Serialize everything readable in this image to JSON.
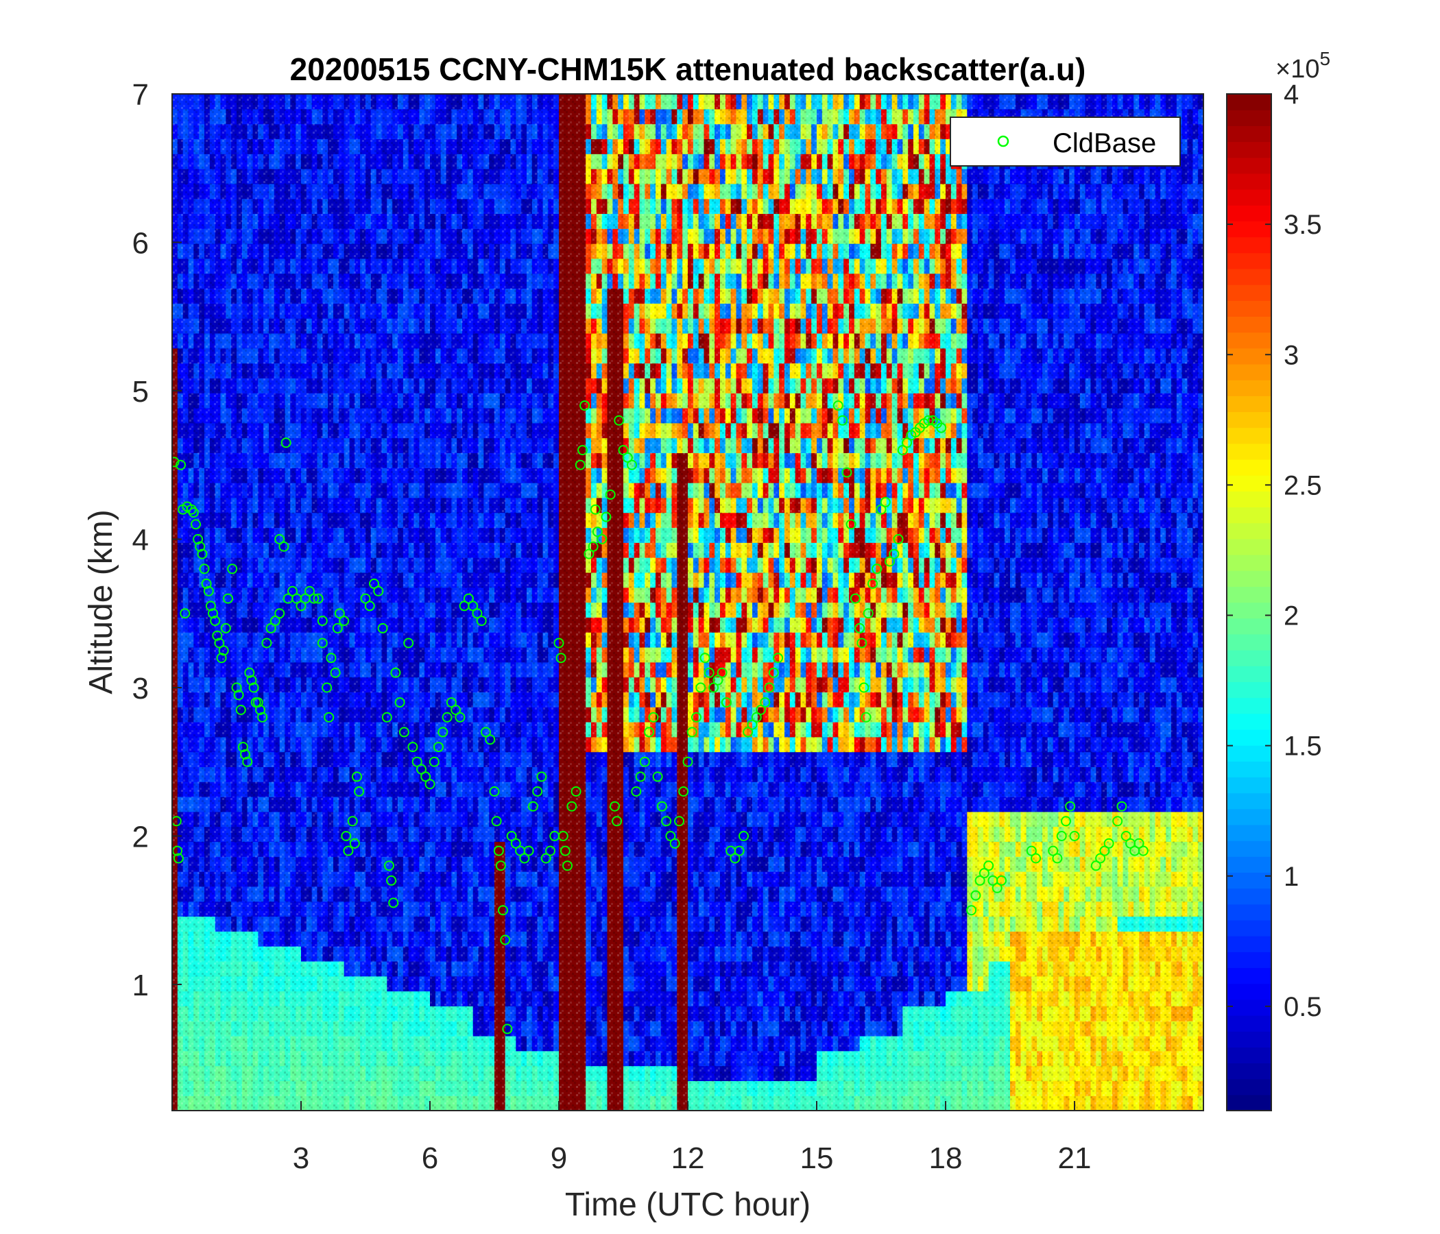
{
  "chart_data": {
    "type": "heatmap",
    "title": "20200515 CCNY-CHM15K attenuated backscatter(a.u)",
    "xlabel": "Time (UTC hour)",
    "ylabel": "Altitude (km)",
    "xlim": [
      0,
      24
    ],
    "ylim": [
      0.15,
      7
    ],
    "x_ticks": [
      3,
      6,
      9,
      12,
      15,
      18,
      21
    ],
    "x_tick_labels": [
      "3",
      "6",
      "9",
      "12",
      "15",
      "18",
      "21"
    ],
    "y_ticks": [
      1,
      2,
      3,
      4,
      5,
      6,
      7
    ],
    "y_tick_labels": [
      "1",
      "2",
      "3",
      "4",
      "5",
      "6",
      "7"
    ],
    "colorbar": {
      "colormap": "jet",
      "clim": [
        0.1,
        4
      ],
      "ticks": [
        0.5,
        1,
        1.5,
        2,
        2.5,
        3,
        3.5,
        4
      ],
      "tick_labels": [
        "0.5",
        "1",
        "1.5",
        "2",
        "2.5",
        "3",
        "3.5",
        "4"
      ],
      "exponent_label": "×10",
      "exponent_power": "5"
    },
    "legend": {
      "position": "top-right",
      "entries": [
        {
          "name": "CldBase",
          "marker": "circle",
          "color": "#00ff00"
        }
      ]
    },
    "heatmap_features": {
      "low_layer_max_km": [
        1.45,
        1.35,
        1.25,
        1.15,
        1.05,
        0.95,
        0.85,
        0.7,
        0.6,
        0.5,
        0.45,
        0.45,
        0.4,
        0.35,
        0.35,
        0.55,
        0.7,
        0.85,
        1.0,
        1.2,
        1.3,
        1.4,
        1.5,
        1.5
      ],
      "upper_high_signal_start_hour": 9.5,
      "vertical_streaks": [
        {
          "hour": 9.3,
          "width": 0.55,
          "top_km": 7.0
        },
        {
          "hour": 10.35,
          "width": 0.35,
          "top_km": 5.7
        },
        {
          "hour": 7.6,
          "width": 0.25,
          "top_km": 2.0
        },
        {
          "hour": 11.9,
          "width": 0.3,
          "top_km": 4.6
        },
        {
          "hour": 0.1,
          "width": 0.15,
          "top_km": 5.3
        }
      ]
    },
    "series": [
      {
        "name": "CldBase",
        "type": "scatter",
        "points": [
          [
            0.05,
            4.52
          ],
          [
            0.1,
            2.1
          ],
          [
            0.12,
            1.9
          ],
          [
            0.15,
            1.85
          ],
          [
            0.2,
            4.5
          ],
          [
            0.25,
            4.2
          ],
          [
            0.3,
            3.5
          ],
          [
            0.35,
            4.22
          ],
          [
            0.45,
            4.2
          ],
          [
            0.5,
            4.18
          ],
          [
            0.55,
            4.1
          ],
          [
            0.6,
            4.0
          ],
          [
            0.65,
            3.95
          ],
          [
            0.7,
            3.9
          ],
          [
            0.75,
            3.8
          ],
          [
            0.8,
            3.7
          ],
          [
            0.85,
            3.65
          ],
          [
            0.9,
            3.55
          ],
          [
            0.95,
            3.5
          ],
          [
            1.0,
            3.45
          ],
          [
            1.05,
            3.35
          ],
          [
            1.1,
            3.3
          ],
          [
            1.15,
            3.2
          ],
          [
            1.2,
            3.25
          ],
          [
            1.25,
            3.4
          ],
          [
            1.3,
            3.6
          ],
          [
            1.4,
            3.8
          ],
          [
            1.5,
            3.0
          ],
          [
            1.55,
            2.95
          ],
          [
            1.6,
            2.85
          ],
          [
            1.65,
            2.6
          ],
          [
            1.7,
            2.55
          ],
          [
            1.75,
            2.5
          ],
          [
            1.8,
            3.1
          ],
          [
            1.85,
            3.05
          ],
          [
            1.9,
            3.0
          ],
          [
            1.95,
            2.9
          ],
          [
            2.0,
            2.9
          ],
          [
            2.05,
            2.85
          ],
          [
            2.1,
            2.8
          ],
          [
            2.2,
            3.3
          ],
          [
            2.3,
            3.4
          ],
          [
            2.4,
            3.45
          ],
          [
            2.5,
            3.5
          ],
          [
            2.5,
            4.0
          ],
          [
            2.6,
            3.95
          ],
          [
            2.65,
            4.65
          ],
          [
            2.7,
            3.6
          ],
          [
            2.8,
            3.65
          ],
          [
            2.9,
            3.6
          ],
          [
            3.0,
            3.55
          ],
          [
            3.1,
            3.6
          ],
          [
            3.2,
            3.65
          ],
          [
            3.3,
            3.6
          ],
          [
            3.4,
            3.6
          ],
          [
            3.5,
            3.45
          ],
          [
            3.5,
            3.3
          ],
          [
            3.6,
            3.0
          ],
          [
            3.65,
            2.8
          ],
          [
            3.7,
            3.2
          ],
          [
            3.8,
            3.1
          ],
          [
            3.85,
            3.4
          ],
          [
            3.9,
            3.5
          ],
          [
            4.0,
            3.45
          ],
          [
            4.05,
            2.0
          ],
          [
            4.1,
            1.9
          ],
          [
            4.2,
            2.1
          ],
          [
            4.25,
            1.95
          ],
          [
            4.3,
            2.4
          ],
          [
            4.35,
            2.3
          ],
          [
            4.5,
            3.6
          ],
          [
            4.6,
            3.55
          ],
          [
            4.7,
            3.7
          ],
          [
            4.8,
            3.65
          ],
          [
            4.9,
            3.4
          ],
          [
            5.0,
            2.8
          ],
          [
            5.05,
            1.8
          ],
          [
            5.1,
            1.7
          ],
          [
            5.15,
            1.55
          ],
          [
            5.2,
            3.1
          ],
          [
            5.3,
            2.9
          ],
          [
            5.4,
            2.7
          ],
          [
            5.5,
            3.3
          ],
          [
            5.6,
            2.6
          ],
          [
            5.7,
            2.5
          ],
          [
            5.8,
            2.45
          ],
          [
            5.9,
            2.4
          ],
          [
            6.0,
            2.35
          ],
          [
            6.1,
            2.5
          ],
          [
            6.2,
            2.6
          ],
          [
            6.3,
            2.7
          ],
          [
            6.4,
            2.8
          ],
          [
            6.5,
            2.9
          ],
          [
            6.6,
            2.85
          ],
          [
            6.7,
            2.8
          ],
          [
            6.8,
            3.55
          ],
          [
            6.9,
            3.6
          ],
          [
            7.0,
            3.55
          ],
          [
            7.1,
            3.5
          ],
          [
            7.2,
            3.45
          ],
          [
            7.3,
            2.7
          ],
          [
            7.4,
            2.65
          ],
          [
            7.5,
            2.3
          ],
          [
            7.55,
            2.1
          ],
          [
            7.6,
            1.9
          ],
          [
            7.65,
            1.8
          ],
          [
            7.7,
            1.5
          ],
          [
            7.75,
            1.3
          ],
          [
            7.8,
            0.7
          ],
          [
            7.9,
            2.0
          ],
          [
            8.0,
            1.95
          ],
          [
            8.1,
            1.9
          ],
          [
            8.2,
            1.85
          ],
          [
            8.3,
            1.9
          ],
          [
            8.4,
            2.2
          ],
          [
            8.5,
            2.3
          ],
          [
            8.6,
            2.4
          ],
          [
            8.7,
            1.85
          ],
          [
            8.8,
            1.9
          ],
          [
            8.9,
            2.0
          ],
          [
            9.0,
            3.3
          ],
          [
            9.05,
            3.2
          ],
          [
            9.1,
            2.0
          ],
          [
            9.15,
            1.9
          ],
          [
            9.2,
            1.8
          ],
          [
            9.3,
            2.2
          ],
          [
            9.4,
            2.3
          ],
          [
            9.5,
            4.5
          ],
          [
            9.55,
            4.6
          ],
          [
            9.6,
            4.9
          ],
          [
            9.7,
            3.9
          ],
          [
            9.8,
            3.95
          ],
          [
            9.85,
            4.2
          ],
          [
            9.9,
            4.05
          ],
          [
            10.0,
            4.0
          ],
          [
            10.1,
            4.15
          ],
          [
            10.2,
            4.3
          ],
          [
            10.3,
            2.2
          ],
          [
            10.35,
            2.1
          ],
          [
            10.4,
            4.8
          ],
          [
            10.5,
            4.6
          ],
          [
            10.6,
            4.55
          ],
          [
            10.7,
            4.5
          ],
          [
            10.8,
            2.3
          ],
          [
            10.9,
            2.4
          ],
          [
            11.0,
            2.5
          ],
          [
            11.1,
            2.7
          ],
          [
            11.2,
            2.8
          ],
          [
            11.3,
            2.4
          ],
          [
            11.4,
            2.2
          ],
          [
            11.5,
            2.1
          ],
          [
            11.6,
            2.0
          ],
          [
            11.7,
            1.95
          ],
          [
            11.8,
            2.1
          ],
          [
            11.9,
            2.3
          ],
          [
            12.0,
            2.5
          ],
          [
            12.1,
            2.7
          ],
          [
            12.2,
            2.8
          ],
          [
            12.3,
            3.0
          ],
          [
            12.4,
            3.2
          ],
          [
            12.5,
            3.1
          ],
          [
            12.6,
            3.0
          ],
          [
            12.7,
            3.05
          ],
          [
            12.8,
            3.1
          ],
          [
            12.9,
            2.9
          ],
          [
            13.0,
            1.9
          ],
          [
            13.1,
            1.85
          ],
          [
            13.2,
            1.9
          ],
          [
            13.3,
            2.0
          ],
          [
            13.4,
            2.7
          ],
          [
            13.5,
            2.75
          ],
          [
            13.6,
            2.8
          ],
          [
            13.7,
            2.85
          ],
          [
            13.8,
            2.9
          ],
          [
            13.9,
            3.0
          ],
          [
            14.0,
            3.1
          ],
          [
            14.1,
            3.2
          ],
          [
            15.5,
            4.9
          ],
          [
            15.6,
            4.8
          ],
          [
            15.7,
            4.45
          ],
          [
            15.8,
            4.1
          ],
          [
            15.9,
            3.6
          ],
          [
            16.0,
            3.4
          ],
          [
            16.05,
            3.3
          ],
          [
            16.1,
            3.0
          ],
          [
            16.15,
            2.8
          ],
          [
            16.2,
            3.5
          ],
          [
            16.3,
            3.7
          ],
          [
            16.4,
            3.8
          ],
          [
            16.5,
            4.2
          ],
          [
            16.6,
            4.25
          ],
          [
            16.7,
            3.85
          ],
          [
            16.8,
            3.9
          ],
          [
            16.9,
            4.0
          ],
          [
            17.0,
            4.6
          ],
          [
            17.1,
            4.65
          ],
          [
            17.2,
            4.7
          ],
          [
            17.3,
            4.72
          ],
          [
            17.4,
            4.75
          ],
          [
            17.5,
            4.78
          ],
          [
            17.6,
            4.8
          ],
          [
            17.7,
            4.8
          ],
          [
            17.8,
            4.78
          ],
          [
            17.9,
            4.75
          ],
          [
            18.6,
            1.5
          ],
          [
            18.7,
            1.6
          ],
          [
            18.8,
            1.7
          ],
          [
            18.9,
            1.75
          ],
          [
            19.0,
            1.8
          ],
          [
            19.1,
            1.7
          ],
          [
            19.2,
            1.65
          ],
          [
            19.3,
            1.7
          ],
          [
            20.0,
            1.9
          ],
          [
            20.1,
            1.85
          ],
          [
            20.5,
            1.9
          ],
          [
            20.6,
            1.85
          ],
          [
            20.7,
            2.0
          ],
          [
            20.8,
            2.1
          ],
          [
            20.9,
            2.2
          ],
          [
            21.0,
            2.0
          ],
          [
            21.5,
            1.8
          ],
          [
            21.6,
            1.85
          ],
          [
            21.7,
            1.9
          ],
          [
            21.8,
            1.95
          ],
          [
            22.0,
            2.1
          ],
          [
            22.1,
            2.2
          ],
          [
            22.2,
            2.0
          ],
          [
            22.3,
            1.95
          ],
          [
            22.4,
            1.9
          ],
          [
            22.5,
            1.95
          ],
          [
            22.6,
            1.9
          ]
        ]
      }
    ]
  }
}
